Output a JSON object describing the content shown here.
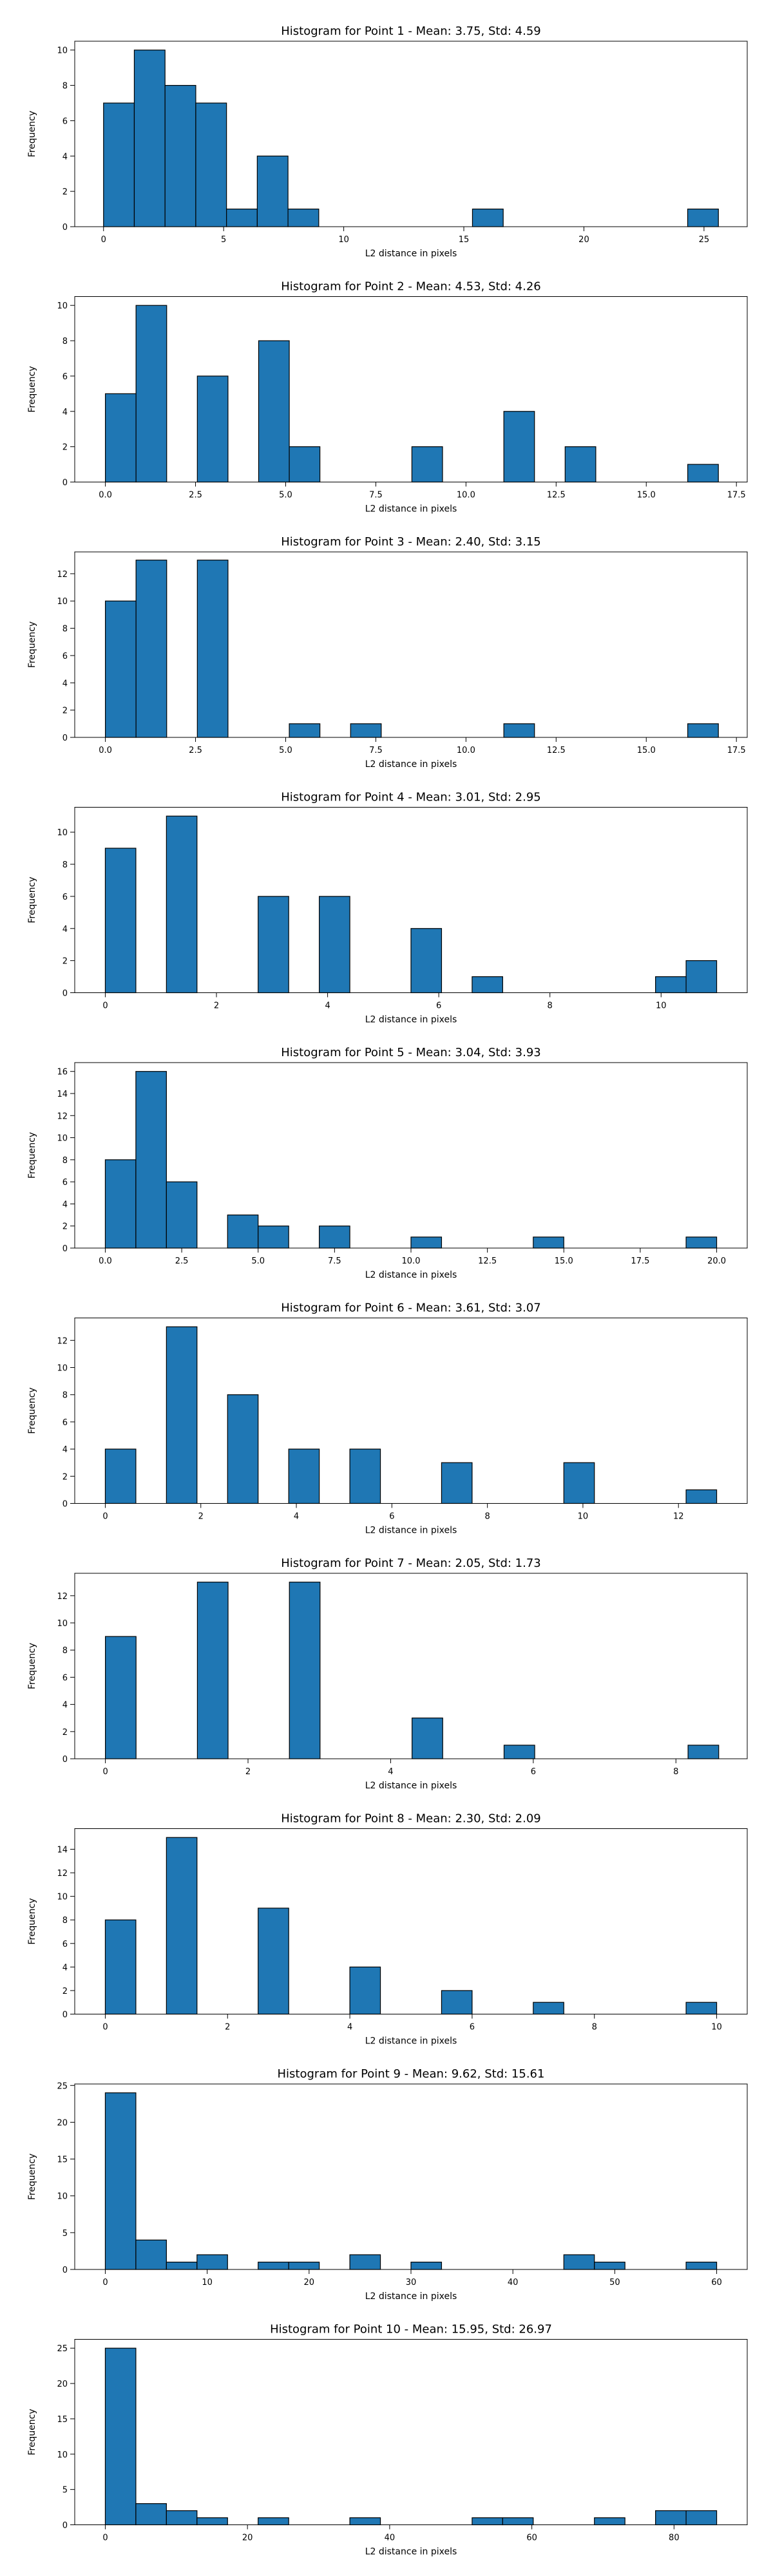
{
  "chart_data": [
    {
      "type": "bar",
      "title": "Histogram for Point 1 - Mean: 3.75, Std: 4.59",
      "xlabel": "L2 distance in pixels",
      "ylabel": "Frequency",
      "xlim": [
        -1.2,
        26.8
      ],
      "ylim": [
        0,
        10.5
      ],
      "xticks": [
        0,
        5,
        10,
        15,
        20,
        25
      ],
      "xtick_labels": [
        "0",
        "5",
        "10",
        "15",
        "20",
        "25"
      ],
      "yticks": [
        0,
        2,
        4,
        6,
        8,
        10
      ],
      "ytick_labels": [
        "0",
        "2",
        "4",
        "6",
        "8",
        "10"
      ],
      "bin_edges": [
        0,
        1.28,
        2.56,
        3.84,
        5.12,
        6.4,
        7.68,
        8.96,
        10.24,
        11.52,
        12.8,
        14.08,
        15.36,
        16.64,
        17.92,
        19.2,
        20.48,
        21.76,
        23.04,
        24.32,
        25.6
      ],
      "values": [
        7,
        10,
        8,
        7,
        1,
        4,
        1,
        0,
        0,
        0,
        0,
        0,
        1,
        0,
        0,
        0,
        0,
        0,
        0,
        1
      ],
      "color": "#1f77b4",
      "edgecolor": "#000000",
      "grid": false
    },
    {
      "type": "bar",
      "title": "Histogram for Point 2 - Mean: 4.53, Std: 4.26",
      "xlabel": "L2 distance in pixels",
      "ylabel": "Frequency",
      "xlim": [
        -0.85,
        17.8
      ],
      "ylim": [
        0,
        10.5
      ],
      "xticks": [
        0,
        2.5,
        5,
        7.5,
        10,
        12.5,
        15,
        17.5
      ],
      "xtick_labels": [
        "0.0",
        "2.5",
        "5.0",
        "7.5",
        "10.0",
        "12.5",
        "15.0",
        "17.5"
      ],
      "yticks": [
        0,
        2,
        4,
        6,
        8,
        10
      ],
      "ytick_labels": [
        "0",
        "2",
        "4",
        "6",
        "8",
        "10"
      ],
      "bin_edges": [
        0,
        0.85,
        1.7,
        2.55,
        3.4,
        4.25,
        5.1,
        5.95,
        6.8,
        7.65,
        8.5,
        9.35,
        10.2,
        11.05,
        11.9,
        12.75,
        13.6,
        14.45,
        15.3,
        16.15,
        17.0
      ],
      "values": [
        5,
        10,
        0,
        6,
        0,
        8,
        2,
        0,
        0,
        0,
        2,
        0,
        0,
        4,
        0,
        2,
        0,
        0,
        0,
        1
      ],
      "color": "#1f77b4",
      "edgecolor": "#000000",
      "grid": false
    },
    {
      "type": "bar",
      "title": "Histogram for Point 3 - Mean: 2.40, Std: 3.15",
      "xlabel": "L2 distance in pixels",
      "ylabel": "Frequency",
      "xlim": [
        -0.85,
        17.8
      ],
      "ylim": [
        0,
        13.6
      ],
      "xticks": [
        0,
        2.5,
        5,
        7.5,
        10,
        12.5,
        15,
        17.5
      ],
      "xtick_labels": [
        "0.0",
        "2.5",
        "5.0",
        "7.5",
        "10.0",
        "12.5",
        "15.0",
        "17.5"
      ],
      "yticks": [
        0,
        2,
        4,
        6,
        8,
        10,
        12
      ],
      "ytick_labels": [
        "0",
        "2",
        "4",
        "6",
        "8",
        "10",
        "12"
      ],
      "bin_edges": [
        0,
        0.85,
        1.7,
        2.55,
        3.4,
        4.25,
        5.1,
        5.95,
        6.8,
        7.65,
        8.5,
        9.35,
        10.2,
        11.05,
        11.9,
        12.75,
        13.6,
        14.45,
        15.3,
        16.15,
        17.0
      ],
      "values": [
        10,
        13,
        0,
        13,
        0,
        0,
        1,
        0,
        1,
        0,
        0,
        0,
        0,
        1,
        0,
        0,
        0,
        0,
        0,
        1
      ],
      "color": "#1f77b4",
      "edgecolor": "#000000",
      "grid": false
    },
    {
      "type": "bar",
      "title": "Histogram for Point 4 - Mean: 3.01, Std: 2.95",
      "xlabel": "L2 distance in pixels",
      "ylabel": "Frequency",
      "xlim": [
        -0.55,
        11.55
      ],
      "ylim": [
        0,
        11.55
      ],
      "xticks": [
        0,
        2,
        4,
        6,
        8,
        10
      ],
      "xtick_labels": [
        "0",
        "2",
        "4",
        "6",
        "8",
        "10"
      ],
      "yticks": [
        0,
        2,
        4,
        6,
        8,
        10
      ],
      "ytick_labels": [
        "0",
        "2",
        "4",
        "6",
        "8",
        "10"
      ],
      "bin_edges": [
        0,
        0.55,
        1.1,
        1.65,
        2.2,
        2.75,
        3.3,
        3.85,
        4.4,
        4.95,
        5.5,
        6.05,
        6.6,
        7.15,
        7.7,
        8.25,
        8.8,
        9.35,
        9.9,
        10.45,
        11.0
      ],
      "values": [
        9,
        0,
        11,
        0,
        0,
        6,
        0,
        6,
        0,
        0,
        4,
        0,
        1,
        0,
        0,
        0,
        0,
        0,
        1,
        2
      ],
      "color": "#1f77b4",
      "edgecolor": "#000000",
      "grid": false
    },
    {
      "type": "bar",
      "title": "Histogram for Point 5 - Mean: 3.04, Std: 3.93",
      "xlabel": "L2 distance in pixels",
      "ylabel": "Frequency",
      "xlim": [
        -1.0,
        21.0
      ],
      "ylim": [
        0,
        16.8
      ],
      "xticks": [
        0,
        2.5,
        5,
        7.5,
        10,
        12.5,
        15,
        17.5,
        20
      ],
      "xtick_labels": [
        "0.0",
        "2.5",
        "5.0",
        "7.5",
        "10.0",
        "12.5",
        "15.0",
        "17.5",
        "20.0"
      ],
      "yticks": [
        0,
        2,
        4,
        6,
        8,
        10,
        12,
        14,
        16
      ],
      "ytick_labels": [
        "0",
        "2",
        "4",
        "6",
        "8",
        "10",
        "12",
        "14",
        "16"
      ],
      "bin_edges": [
        0,
        1,
        2,
        3,
        4,
        5,
        6,
        7,
        8,
        9,
        10,
        11,
        12,
        13,
        14,
        15,
        16,
        17,
        18,
        19,
        20
      ],
      "values": [
        8,
        16,
        6,
        0,
        3,
        2,
        0,
        2,
        0,
        0,
        1,
        0,
        0,
        0,
        1,
        0,
        0,
        0,
        0,
        1
      ],
      "color": "#1f77b4",
      "edgecolor": "#000000",
      "grid": false
    },
    {
      "type": "bar",
      "title": "Histogram for Point 6 - Mean: 3.61, Std: 3.07",
      "xlabel": "L2 distance in pixels",
      "ylabel": "Frequency",
      "xlim": [
        -0.64,
        13.44
      ],
      "ylim": [
        0,
        13.65
      ],
      "xticks": [
        0,
        2,
        4,
        6,
        8,
        10,
        12
      ],
      "xtick_labels": [
        "0",
        "2",
        "4",
        "6",
        "8",
        "10",
        "12"
      ],
      "yticks": [
        0,
        2,
        4,
        6,
        8,
        10,
        12
      ],
      "ytick_labels": [
        "0",
        "2",
        "4",
        "6",
        "8",
        "10",
        "12"
      ],
      "bin_edges": [
        0,
        0.64,
        1.28,
        1.92,
        2.56,
        3.2,
        3.84,
        4.48,
        5.12,
        5.76,
        6.4,
        7.04,
        7.68,
        8.32,
        8.96,
        9.6,
        10.24,
        10.88,
        11.52,
        12.16,
        12.8
      ],
      "values": [
        4,
        0,
        13,
        0,
        8,
        0,
        4,
        0,
        4,
        0,
        0,
        3,
        0,
        0,
        0,
        3,
        0,
        0,
        0,
        1
      ],
      "color": "#1f77b4",
      "edgecolor": "#000000",
      "grid": false
    },
    {
      "type": "bar",
      "title": "Histogram for Point 7 - Mean: 2.05, Std: 1.73",
      "xlabel": "L2 distance in pixels",
      "ylabel": "Frequency",
      "xlim": [
        -0.43,
        9.0
      ],
      "ylim": [
        0,
        13.65
      ],
      "xticks": [
        0,
        2,
        4,
        6,
        8
      ],
      "xtick_labels": [
        "0",
        "2",
        "4",
        "6",
        "8"
      ],
      "yticks": [
        0,
        2,
        4,
        6,
        8,
        10,
        12
      ],
      "ytick_labels": [
        "0",
        "2",
        "4",
        "6",
        "8",
        "10",
        "12"
      ],
      "bin_edges": [
        0,
        0.43,
        0.86,
        1.29,
        1.72,
        2.15,
        2.58,
        3.01,
        3.44,
        3.87,
        4.3,
        4.73,
        5.16,
        5.59,
        6.02,
        6.45,
        6.88,
        7.31,
        7.74,
        8.17,
        8.6
      ],
      "values": [
        9,
        0,
        0,
        13,
        0,
        0,
        13,
        0,
        0,
        0,
        3,
        0,
        0,
        1,
        0,
        0,
        0,
        0,
        0,
        1
      ],
      "color": "#1f77b4",
      "edgecolor": "#000000",
      "grid": false
    },
    {
      "type": "bar",
      "title": "Histogram for Point 8 - Mean: 2.30, Std: 2.09",
      "xlabel": "L2 distance in pixels",
      "ylabel": "Frequency",
      "xlim": [
        -0.5,
        10.5
      ],
      "ylim": [
        0,
        15.75
      ],
      "xticks": [
        0,
        2,
        4,
        6,
        8,
        10
      ],
      "xtick_labels": [
        "0",
        "2",
        "4",
        "6",
        "8",
        "10"
      ],
      "yticks": [
        0,
        2,
        4,
        6,
        8,
        10,
        12,
        14
      ],
      "ytick_labels": [
        "0",
        "2",
        "4",
        "6",
        "8",
        "10",
        "12",
        "14"
      ],
      "bin_edges": [
        0,
        0.5,
        1.0,
        1.5,
        2.0,
        2.5,
        3.0,
        3.5,
        4.0,
        4.5,
        5.0,
        5.5,
        6.0,
        6.5,
        7.0,
        7.5,
        8.0,
        8.5,
        9.0,
        9.5,
        10.0
      ],
      "values": [
        8,
        0,
        15,
        0,
        0,
        9,
        0,
        0,
        4,
        0,
        0,
        2,
        0,
        0,
        1,
        0,
        0,
        0,
        0,
        1
      ],
      "color": "#1f77b4",
      "edgecolor": "#000000",
      "grid": false
    },
    {
      "type": "bar",
      "title": "Histogram for Point 9 - Mean: 9.62, Std: 15.61",
      "xlabel": "L2 distance in pixels",
      "ylabel": "Frequency",
      "xlim": [
        -3.0,
        63.0
      ],
      "ylim": [
        0,
        25.2
      ],
      "xticks": [
        0,
        10,
        20,
        30,
        40,
        50,
        60
      ],
      "xtick_labels": [
        "0",
        "10",
        "20",
        "30",
        "40",
        "50",
        "60"
      ],
      "yticks": [
        0,
        5,
        10,
        15,
        20,
        25
      ],
      "ytick_labels": [
        "0",
        "5",
        "10",
        "15",
        "20",
        "25"
      ],
      "bin_edges": [
        0,
        3,
        6,
        9,
        12,
        15,
        18,
        21,
        24,
        27,
        30,
        33,
        36,
        39,
        42,
        45,
        48,
        51,
        54,
        57,
        60
      ],
      "values": [
        24,
        4,
        1,
        2,
        0,
        1,
        1,
        0,
        2,
        0,
        1,
        0,
        0,
        0,
        0,
        2,
        1,
        0,
        0,
        1
      ],
      "color": "#1f77b4",
      "edgecolor": "#000000",
      "grid": false
    },
    {
      "type": "bar",
      "title": "Histogram for Point 10 - Mean: 15.95, Std: 26.97",
      "xlabel": "L2 distance in pixels",
      "ylabel": "Frequency",
      "xlim": [
        -4.3,
        90.3
      ],
      "ylim": [
        0,
        26.25
      ],
      "xticks": [
        0,
        20,
        40,
        60,
        80
      ],
      "xtick_labels": [
        "0",
        "20",
        "40",
        "60",
        "80"
      ],
      "yticks": [
        0,
        5,
        10,
        15,
        20,
        25
      ],
      "ytick_labels": [
        "0",
        "5",
        "10",
        "15",
        "20",
        "25"
      ],
      "bin_edges": [
        0,
        4.3,
        8.6,
        12.9,
        17.2,
        21.5,
        25.8,
        30.1,
        34.4,
        38.7,
        43.0,
        47.3,
        51.6,
        55.9,
        60.2,
        64.5,
        68.8,
        73.1,
        77.4,
        81.7,
        86.0
      ],
      "values": [
        25,
        3,
        2,
        1,
        0,
        1,
        0,
        0,
        1,
        0,
        0,
        0,
        1,
        1,
        0,
        0,
        1,
        0,
        2,
        2
      ],
      "color": "#1f77b4",
      "edgecolor": "#000000",
      "grid": false
    }
  ]
}
